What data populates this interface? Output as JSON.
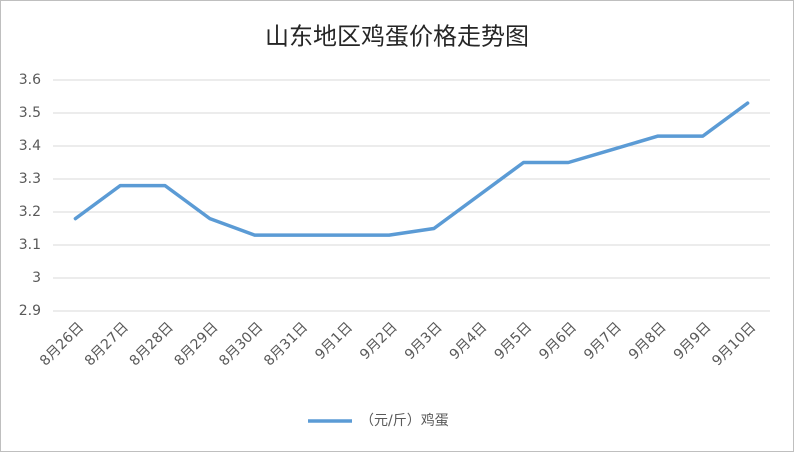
{
  "chart_data": {
    "type": "line",
    "title": "山东地区鸡蛋价格走势图",
    "categories": [
      "8月26日",
      "8月27日",
      "8月28日",
      "8月29日",
      "8月30日",
      "8月31日",
      "9月1日",
      "9月2日",
      "9月3日",
      "9月4日",
      "9月5日",
      "9月6日",
      "9月7日",
      "9月8日",
      "9月9日",
      "9月10日"
    ],
    "series": [
      {
        "name": "（元/斤）鸡蛋",
        "color": "#5b9bd5",
        "values": [
          3.18,
          3.28,
          3.28,
          3.18,
          3.13,
          3.13,
          3.13,
          3.13,
          3.15,
          3.25,
          3.35,
          3.35,
          3.39,
          3.43,
          3.43,
          3.53
        ]
      }
    ],
    "ylim": [
      2.9,
      3.6
    ],
    "yticks": [
      2.9,
      3,
      3.1,
      3.2,
      3.3,
      3.4,
      3.5,
      3.6
    ],
    "grid": true,
    "legend": "bottom"
  }
}
